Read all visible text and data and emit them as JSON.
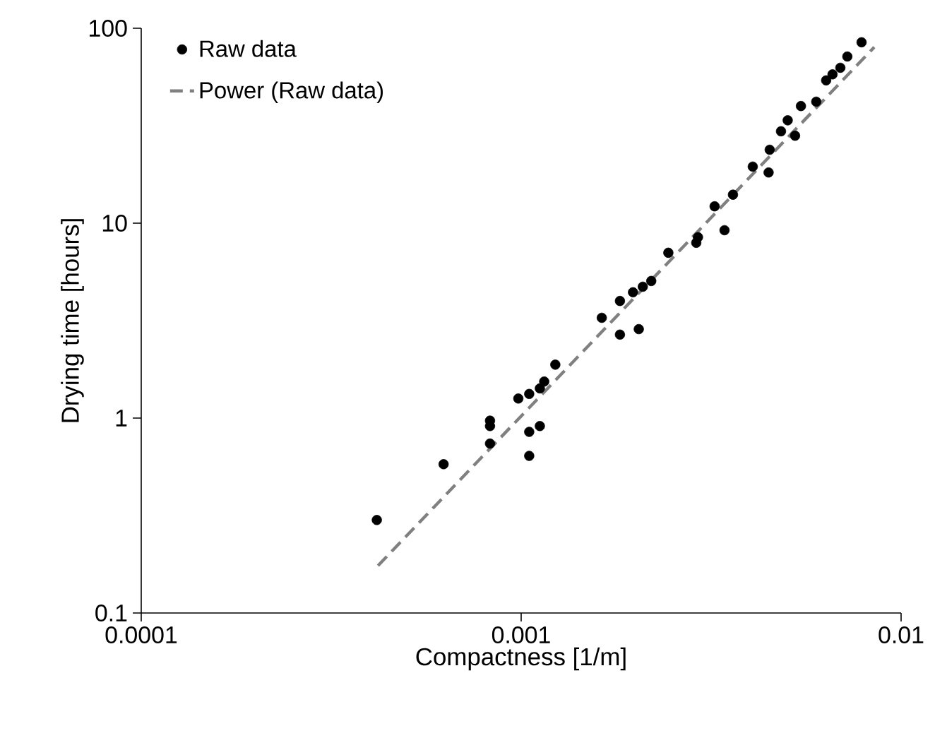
{
  "chart_data": {
    "type": "scatter",
    "xlabel": "Compactness [1/m]",
    "ylabel": "Drying time [hours]",
    "log": "xy",
    "xlim": [
      0.0001,
      0.01
    ],
    "ylim": [
      0.1,
      100
    ],
    "xticks": [
      0.0001,
      0.001,
      0.01
    ],
    "yticks": [
      0.1,
      1,
      10,
      100
    ],
    "grid": false,
    "legend": "top left",
    "marker": "circle",
    "series": [
      {
        "name": "Raw data",
        "type": "scatter",
        "color": "#000000",
        "x": [
          0.000417,
          0.000625,
          0.000828,
          0.000828,
          0.000828,
          0.000983,
          0.00105,
          0.00112,
          0.00115,
          0.00123,
          0.00105,
          0.00112,
          0.00105,
          0.00163,
          0.00182,
          0.00204,
          0.00182,
          0.00197,
          0.00209,
          0.0022,
          0.00244,
          0.00289,
          0.00292,
          0.00343,
          0.00323,
          0.00361,
          0.00407,
          0.00448,
          0.00451,
          0.00483,
          0.00526,
          0.00503,
          0.00545,
          0.00598,
          0.00635,
          0.0066,
          0.00692,
          0.00722,
          0.00787
        ],
        "values": [
          0.3,
          0.58,
          0.97,
          0.91,
          0.74,
          1.26,
          1.33,
          1.42,
          1.54,
          1.88,
          0.85,
          0.91,
          0.64,
          3.27,
          2.68,
          2.86,
          3.99,
          4.42,
          4.72,
          5.05,
          7.05,
          7.93,
          8.47,
          9.2,
          12.2,
          14.0,
          19.5,
          18.2,
          23.8,
          29.6,
          28.1,
          33.7,
          39.9,
          42.0,
          54,
          58,
          62.7,
          71.6,
          84.7
        ]
      },
      {
        "name": "Power (Raw data)",
        "type": "line",
        "color": "#808080",
        "line_style": "dashed",
        "marker": "none",
        "x": [
          0.00042,
          0.0085
        ],
        "values": [
          0.175,
          80
        ]
      }
    ]
  }
}
